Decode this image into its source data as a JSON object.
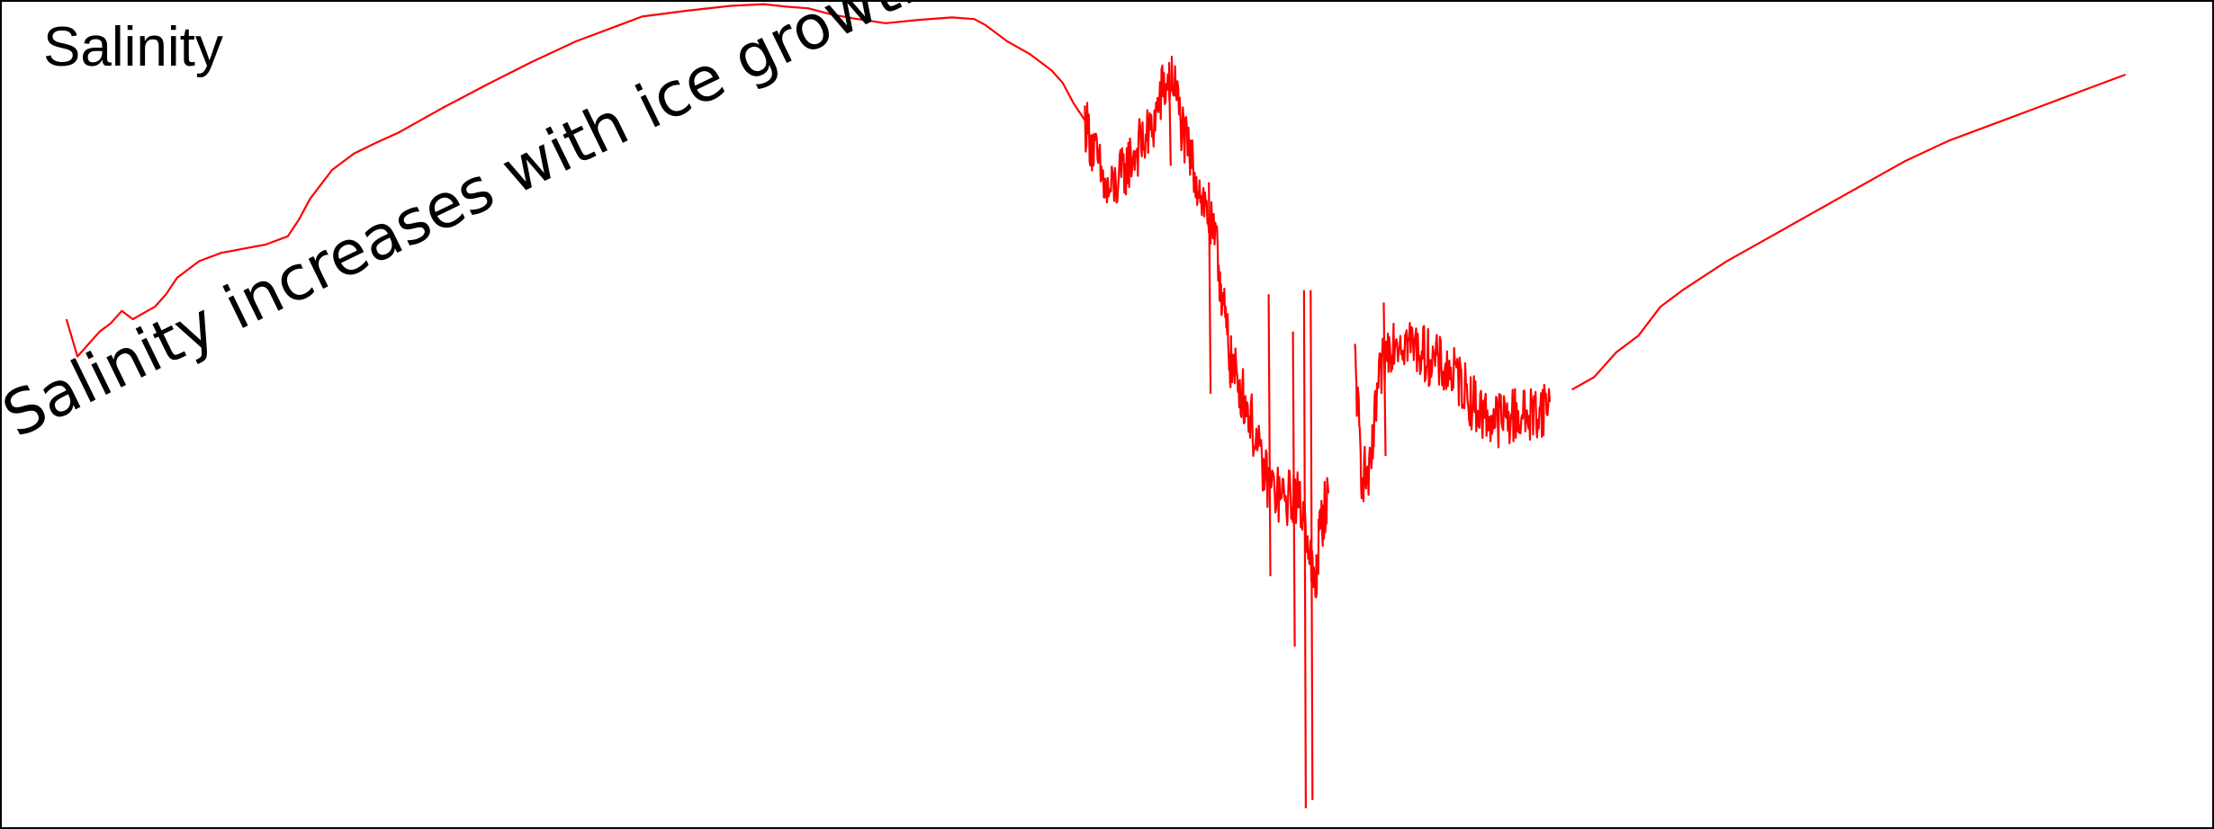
{
  "chart_data": {
    "type": "line",
    "title": "Salinity",
    "annotations": [
      "Salinity increases with ice growth"
    ],
    "xlabel": "",
    "ylabel": "",
    "grid": false,
    "axes_visible": false,
    "legend": "none",
    "ylim": [
      0,
      100
    ],
    "xlim": [
      0,
      100
    ],
    "series": [
      {
        "color": "#ff0000",
        "noisy": false,
        "points": [
          [
            3.0,
            61.5
          ],
          [
            3.5,
            57.0
          ],
          [
            4.0,
            58.5
          ],
          [
            4.5,
            60.0
          ],
          [
            5.0,
            61.0
          ],
          [
            5.5,
            62.5
          ],
          [
            6.0,
            61.5
          ],
          [
            7.0,
            63.0
          ],
          [
            7.5,
            64.5
          ],
          [
            8.0,
            66.5
          ],
          [
            9.0,
            68.5
          ],
          [
            10.0,
            69.5
          ],
          [
            11.0,
            70.0
          ],
          [
            12.0,
            70.5
          ],
          [
            13.0,
            71.5
          ],
          [
            13.5,
            73.5
          ],
          [
            14.0,
            76.0
          ],
          [
            15.0,
            79.5
          ],
          [
            16.0,
            81.5
          ],
          [
            17.0,
            82.8
          ],
          [
            18.0,
            84.0
          ],
          [
            19.0,
            85.5
          ],
          [
            20.0,
            87.0
          ],
          [
            22.0,
            89.8
          ],
          [
            24.0,
            92.5
          ],
          [
            26.0,
            95.0
          ],
          [
            28.0,
            97.0
          ],
          [
            29.0,
            98.0
          ],
          [
            31.0,
            98.7
          ],
          [
            33.0,
            99.3
          ],
          [
            34.5,
            99.5
          ],
          [
            35.5,
            99.2
          ],
          [
            36.5,
            99.0
          ],
          [
            37.5,
            98.3
          ],
          [
            38.5,
            97.8
          ],
          [
            40.0,
            97.2
          ],
          [
            41.5,
            97.6
          ],
          [
            43.0,
            97.9
          ],
          [
            44.0,
            97.7
          ],
          [
            44.5,
            97.0
          ],
          [
            45.0,
            96.0
          ],
          [
            45.5,
            95.0
          ],
          [
            46.5,
            93.5
          ],
          [
            47.5,
            91.5
          ],
          [
            48.0,
            90.0
          ],
          [
            48.5,
            87.5
          ],
          [
            49.0,
            85.5
          ]
        ]
      },
      {
        "color": "#ff0000",
        "noisy": true,
        "points": [
          [
            49.0,
            85.5
          ],
          [
            49.5,
            81.0
          ],
          [
            50.0,
            76.5
          ],
          [
            50.5,
            78.0
          ],
          [
            51.0,
            80.5
          ],
          [
            51.5,
            82.5
          ],
          [
            52.0,
            84.0
          ],
          [
            52.5,
            89.0
          ],
          [
            53.0,
            90.5
          ],
          [
            53.5,
            83.0
          ],
          [
            54.0,
            79.0
          ],
          [
            54.5,
            74.5
          ],
          [
            55.0,
            69.0
          ],
          [
            55.3,
            62.0
          ],
          [
            55.6,
            56.0
          ],
          [
            56.0,
            53.5
          ],
          [
            56.5,
            49.5
          ],
          [
            57.0,
            43.5
          ],
          [
            57.5,
            41.0
          ],
          [
            58.0,
            39.5
          ],
          [
            58.5,
            40.5
          ],
          [
            59.0,
            37.0
          ],
          [
            59.4,
            28.0
          ],
          [
            59.6,
            36.0
          ],
          [
            60.0,
            40.5
          ]
        ]
      },
      {
        "color": "#ff0000",
        "noisy": true,
        "points": [
          [
            61.2,
            56.5
          ],
          [
            61.5,
            43.0
          ],
          [
            61.9,
            42.5
          ],
          [
            62.2,
            52.5
          ],
          [
            62.6,
            57.5
          ],
          [
            63.0,
            59.5
          ],
          [
            63.5,
            59.0
          ],
          [
            64.0,
            58.0
          ],
          [
            64.5,
            57.0
          ],
          [
            65.0,
            56.0
          ],
          [
            65.5,
            55.0
          ],
          [
            66.0,
            54.0
          ],
          [
            66.5,
            51.5
          ],
          [
            67.0,
            50.0
          ],
          [
            67.5,
            49.5
          ],
          [
            68.0,
            49.5
          ],
          [
            68.5,
            50.0
          ],
          [
            69.0,
            49.8
          ],
          [
            69.5,
            50.5
          ],
          [
            70.0,
            51.5
          ]
        ]
      },
      {
        "color": "#ff0000",
        "noisy": false,
        "points": [
          [
            71.0,
            53.0
          ],
          [
            72.0,
            54.5
          ],
          [
            73.0,
            57.5
          ],
          [
            74.0,
            59.5
          ],
          [
            75.0,
            63.0
          ],
          [
            76.0,
            65.0
          ],
          [
            78.0,
            68.5
          ],
          [
            80.0,
            71.5
          ],
          [
            82.0,
            74.5
          ],
          [
            84.0,
            77.5
          ],
          [
            86.0,
            80.5
          ],
          [
            88.0,
            83.0
          ],
          [
            90.0,
            85.0
          ],
          [
            92.0,
            87.0
          ],
          [
            94.0,
            89.0
          ],
          [
            96.0,
            91.0
          ]
        ]
      }
    ]
  }
}
